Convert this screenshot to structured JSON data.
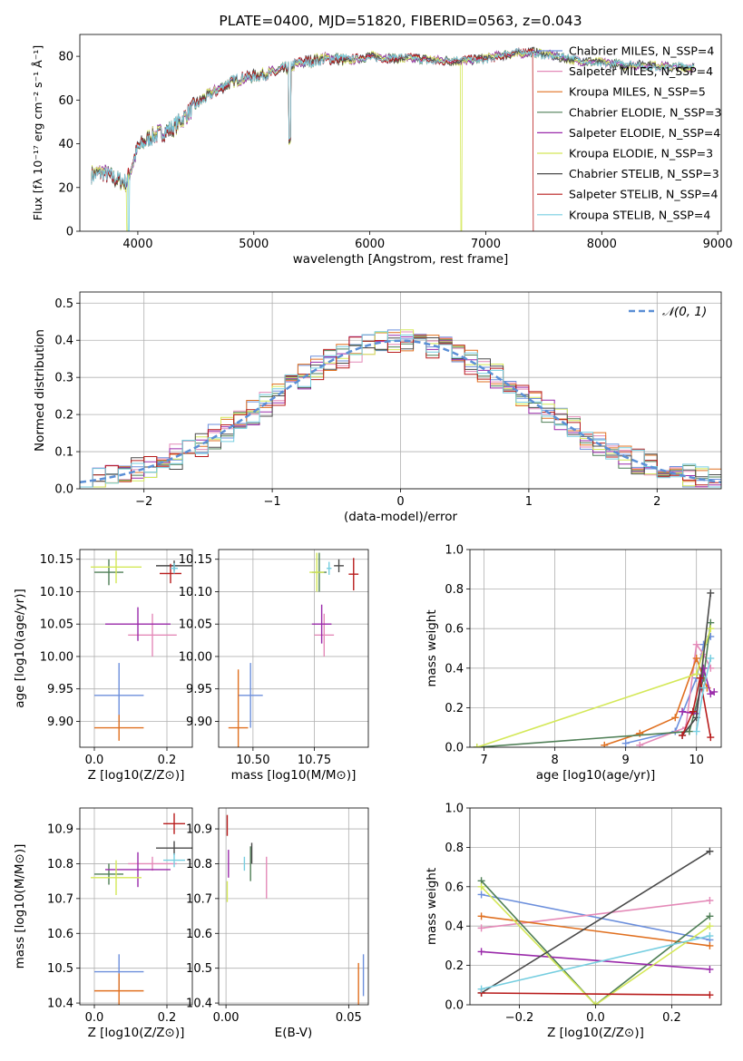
{
  "colors": {
    "Chabrier MILES": "#6c8fdc",
    "Salpeter MILES": "#e48ab8",
    "Kroupa MILES": "#e07020",
    "Chabrier ELODIE": "#4f7f56",
    "Salpeter ELODIE": "#9a2aaa",
    "Kroupa ELODIE": "#d4e858",
    "Chabrier STELIB": "#4a4a4a",
    "Salpeter STELIB": "#b81c1c",
    "Kroupa STELIB": "#76cee0"
  },
  "chart_data": [
    {
      "type": "line",
      "title": "PLATE=0400, MJD=51820, FIBERID=0563, z=0.043",
      "xlabel": "wavelength [Angstrom, rest frame]",
      "ylabel": "Flux [fλ 10⁻¹⁷ erg cm⁻² s⁻¹ Å⁻¹]",
      "xlim": [
        3500,
        9030
      ],
      "ylim": [
        0,
        90
      ],
      "xticks": [
        "4000",
        "5000",
        "6000",
        "7000",
        "8000",
        "9000"
      ],
      "yticks": [
        "0",
        "20",
        "40",
        "60",
        "80"
      ],
      "grid": false,
      "legend_position": "top-right",
      "legend": [
        {
          "model": "Chabrier MILES",
          "label": "Chabrier MILES, N_SSP=4"
        },
        {
          "model": "Salpeter MILES",
          "label": "Salpeter MILES, N_SSP=4"
        },
        {
          "model": "Kroupa MILES",
          "label": "Kroupa MILES, N_SSP=5"
        },
        {
          "model": "Chabrier ELODIE",
          "label": "Chabrier ELODIE, N_SSP=3"
        },
        {
          "model": "Salpeter ELODIE",
          "label": "Salpeter ELODIE, N_SSP=4"
        },
        {
          "model": "Kroupa ELODIE",
          "label": "Kroupa ELODIE, N_SSP=3"
        },
        {
          "model": "Chabrier STELIB",
          "label": "Chabrier STELIB, N_SSP=3"
        },
        {
          "model": "Salpeter STELIB",
          "label": "Salpeter STELIB, N_SSP=4"
        },
        {
          "model": "Kroupa STELIB",
          "label": "Kroupa STELIB, N_SSP=4"
        }
      ],
      "continuum": {
        "x": [
          3600,
          3700,
          3800,
          3900,
          4000,
          4100,
          4200,
          4300,
          4400,
          4500,
          4600,
          4700,
          4800,
          4900,
          5000,
          5100,
          5200,
          5300,
          5400,
          5500,
          5600,
          5700,
          5800,
          5900,
          6000,
          6200,
          6400,
          6600,
          6800,
          7000,
          7200,
          7400,
          7600,
          7800,
          8000,
          8200,
          8400,
          8600,
          8800
        ],
        "y": [
          26,
          27,
          24,
          22,
          38,
          43,
          45,
          47,
          52,
          58,
          62,
          65,
          68,
          70,
          71,
          72,
          73,
          75,
          77,
          78,
          79,
          79,
          78,
          79,
          80,
          79,
          79,
          78,
          78,
          79,
          81,
          82,
          80,
          78,
          77,
          76,
          76,
          75,
          75
        ]
      },
      "cutoffs": [
        {
          "model": "Kroupa ELODIE",
          "x": 6790
        },
        {
          "model": "Salpeter STELIB",
          "x": 7410
        },
        {
          "model": "Kroupa STELIB",
          "x": 3920
        },
        {
          "model": "Kroupa ELODIE",
          "x": 3910
        }
      ]
    },
    {
      "type": "step",
      "title": "",
      "xlabel": "(data-model)/error",
      "ylabel": "Normed distribution",
      "xlim": [
        -2.5,
        2.5
      ],
      "ylim": [
        0,
        0.53
      ],
      "xticks": [
        "−2",
        "−1",
        "0",
        "1",
        "2"
      ],
      "yticks": [
        "0.0",
        "0.1",
        "0.2",
        "0.3",
        "0.4",
        "0.5"
      ],
      "grid": true,
      "legend_position": "top-right",
      "legend_label": "𝒩(0, 1)",
      "reference_curve": "normal distribution, mean 0, sigma 1",
      "histogram_range": [
        -2.5,
        2.5
      ],
      "n_bins": 50
    },
    {
      "type": "scatter",
      "title": "",
      "xlabel": "Z [log10(Z/Z⊙)]",
      "ylabel": "age  [log10(age/yr)]",
      "xlim": [
        -0.04,
        0.27
      ],
      "ylim": [
        9.86,
        10.165
      ],
      "xticks": [
        "0.0",
        "0.2"
      ],
      "yticks": [
        "9.90",
        "9.95",
        "10.00",
        "10.05",
        "10.10",
        "10.15"
      ],
      "grid": true,
      "points": [
        {
          "model": "Chabrier MILES",
          "x": 0.068,
          "y": 9.94,
          "xerr": 0.068,
          "yerr": 0.05
        },
        {
          "model": "Salpeter MILES",
          "x": 0.16,
          "y": 10.033,
          "xerr": 0.067,
          "yerr": 0.033
        },
        {
          "model": "Kroupa MILES",
          "x": 0.068,
          "y": 9.89,
          "xerr": 0.068,
          "yerr": 0.02
        },
        {
          "model": "Chabrier ELODIE",
          "x": 0.04,
          "y": 10.13,
          "xerr": 0.04,
          "yerr": 0.02
        },
        {
          "model": "Salpeter ELODIE",
          "x": 0.12,
          "y": 10.05,
          "xerr": 0.09,
          "yerr": 0.026
        },
        {
          "model": "Kroupa ELODIE",
          "x": 0.06,
          "y": 10.138,
          "xerr": 0.07,
          "yerr": 0.025
        },
        {
          "model": "Chabrier STELIB",
          "x": 0.22,
          "y": 10.14,
          "xerr": 0.05,
          "yerr": 0.008
        },
        {
          "model": "Salpeter STELIB",
          "x": 0.21,
          "y": 10.128,
          "xerr": 0.03,
          "yerr": 0.015
        },
        {
          "model": "Kroupa STELIB",
          "x": 0.22,
          "y": 10.136,
          "xerr": 0.01,
          "yerr": 0.008
        }
      ]
    },
    {
      "type": "scatter",
      "title": "",
      "xlabel": "mass [log10(M/M⊙)]",
      "ylabel": "",
      "xlim": [
        10.36,
        10.97
      ],
      "ylim": [
        9.86,
        10.165
      ],
      "xticks": [
        "10.50",
        "10.75"
      ],
      "yticks": [
        "9.90",
        "9.95",
        "10.00",
        "10.05",
        "10.10",
        "10.15"
      ],
      "grid": true,
      "points": [
        {
          "model": "Chabrier MILES",
          "x": 10.49,
          "y": 9.94,
          "xerr": 0.05,
          "yerr": 0.05
        },
        {
          "model": "Salpeter MILES",
          "x": 10.79,
          "y": 10.033,
          "xerr": 0.04,
          "yerr": 0.033
        },
        {
          "model": "Kroupa MILES",
          "x": 10.44,
          "y": 9.89,
          "xerr": 0.04,
          "yerr": 0.09
        },
        {
          "model": "Chabrier ELODIE",
          "x": 10.77,
          "y": 10.13,
          "xerr": 0.03,
          "yerr": 0.03
        },
        {
          "model": "Salpeter ELODIE",
          "x": 10.78,
          "y": 10.05,
          "xerr": 0.04,
          "yerr": 0.03
        },
        {
          "model": "Kroupa ELODIE",
          "x": 10.76,
          "y": 10.13,
          "xerr": 0.03,
          "yerr": 0.03
        },
        {
          "model": "Chabrier STELIB",
          "x": 10.85,
          "y": 10.14,
          "xerr": 0.02,
          "yerr": 0.01
        },
        {
          "model": "Salpeter STELIB",
          "x": 10.91,
          "y": 10.127,
          "xerr": 0.02,
          "yerr": 0.025
        },
        {
          "model": "Kroupa STELIB",
          "x": 10.81,
          "y": 10.136,
          "xerr": 0.01,
          "yerr": 0.01
        }
      ]
    },
    {
      "type": "line",
      "title": "",
      "xlabel": "age  [log10(age/yr)]",
      "ylabel": "mass weight",
      "xlim": [
        6.8,
        10.35
      ],
      "ylim": [
        0,
        1.0
      ],
      "xticks": [
        "7",
        "8",
        "9",
        "10"
      ],
      "yticks": [
        "0.0",
        "0.2",
        "0.4",
        "0.6",
        "0.8",
        "1.0"
      ],
      "grid": true,
      "series": [
        {
          "model": "Chabrier MILES",
          "x": [
            9.0,
            9.7,
            10.0,
            10.1,
            10.2
          ],
          "y": [
            0.02,
            0.08,
            0.35,
            0.52,
            0.56
          ]
        },
        {
          "model": "Salpeter MILES",
          "x": [
            9.2,
            9.85,
            10.0,
            10.1,
            10.2
          ],
          "y": [
            0.01,
            0.1,
            0.52,
            0.47,
            0.4
          ]
        },
        {
          "model": "Kroupa MILES",
          "x": [
            8.7,
            9.2,
            9.7,
            10.0,
            10.15
          ],
          "y": [
            0.01,
            0.07,
            0.15,
            0.45,
            0.3
          ]
        },
        {
          "model": "Chabrier ELODIE",
          "x": [
            6.9,
            9.9,
            10.1,
            10.2
          ],
          "y": [
            0.0,
            0.08,
            0.35,
            0.63
          ]
        },
        {
          "model": "Salpeter ELODIE",
          "x": [
            9.8,
            10.0,
            10.1,
            10.2,
            10.25
          ],
          "y": [
            0.18,
            0.17,
            0.4,
            0.27,
            0.28
          ]
        },
        {
          "model": "Kroupa ELODIE",
          "x": [
            6.9,
            10.0,
            10.2
          ],
          "y": [
            0.0,
            0.37,
            0.6
          ]
        },
        {
          "model": "Chabrier STELIB",
          "x": [
            9.8,
            10.0,
            10.2
          ],
          "y": [
            0.06,
            0.15,
            0.78
          ]
        },
        {
          "model": "Salpeter STELIB",
          "x": [
            9.8,
            9.95,
            10.05,
            10.2
          ],
          "y": [
            0.06,
            0.18,
            0.35,
            0.05
          ]
        },
        {
          "model": "Kroupa STELIB",
          "x": [
            10.0,
            10.1,
            10.2
          ],
          "y": [
            0.08,
            0.3,
            0.45
          ]
        }
      ]
    },
    {
      "type": "scatter",
      "title": "",
      "xlabel": "Z [log10(Z/Z⊙)]",
      "ylabel": "mass [log10(M/M⊙)]",
      "xlim": [
        -0.04,
        0.27
      ],
      "ylim": [
        10.395,
        10.96
      ],
      "xticks": [
        "0.0",
        "0.2"
      ],
      "yticks": [
        "10.4",
        "10.5",
        "10.6",
        "10.7",
        "10.8",
        "10.9"
      ],
      "grid": true,
      "points": [
        {
          "model": "Chabrier MILES",
          "x": 0.068,
          "y": 10.49,
          "xerr": 0.068,
          "yerr": 0.05
        },
        {
          "model": "Salpeter MILES",
          "x": 0.16,
          "y": 10.8,
          "xerr": 0.067,
          "yerr": 0.02
        },
        {
          "model": "Kroupa MILES",
          "x": 0.068,
          "y": 10.435,
          "xerr": 0.068,
          "yerr": 0.05
        },
        {
          "model": "Chabrier ELODIE",
          "x": 0.04,
          "y": 10.77,
          "xerr": 0.04,
          "yerr": 0.03
        },
        {
          "model": "Salpeter ELODIE",
          "x": 0.12,
          "y": 10.783,
          "xerr": 0.09,
          "yerr": 0.05
        },
        {
          "model": "Kroupa ELODIE",
          "x": 0.06,
          "y": 10.76,
          "xerr": 0.07,
          "yerr": 0.05
        },
        {
          "model": "Chabrier STELIB",
          "x": 0.22,
          "y": 10.845,
          "xerr": 0.05,
          "yerr": 0.02
        },
        {
          "model": "Salpeter STELIB",
          "x": 0.22,
          "y": 10.915,
          "xerr": 0.03,
          "yerr": 0.03
        },
        {
          "model": "Kroupa STELIB",
          "x": 0.22,
          "y": 10.81,
          "xerr": 0.03,
          "yerr": 0.02
        }
      ]
    },
    {
      "type": "scatter",
      "title": "",
      "xlabel": "E(B-V)",
      "ylabel": "",
      "xlim": [
        -0.003,
        0.058
      ],
      "ylim": [
        10.395,
        10.96
      ],
      "xticks": [
        "0.00",
        "0.05"
      ],
      "yticks": [
        "10.4",
        "10.5",
        "10.6",
        "10.7",
        "10.8",
        "10.9"
      ],
      "grid": true,
      "points": [
        {
          "model": "Chabrier MILES",
          "x": 0.056,
          "y": 10.48,
          "xerr": 0.0,
          "yerr": 0.06
        },
        {
          "model": "Salpeter MILES",
          "x": 0.0165,
          "y": 10.76,
          "xerr": 0.0,
          "yerr": 0.06
        },
        {
          "model": "Kroupa MILES",
          "x": 0.054,
          "y": 10.455,
          "xerr": 0.0,
          "yerr": 0.06
        },
        {
          "model": "Chabrier ELODIE",
          "x": 0.01,
          "y": 10.8,
          "xerr": 0.0,
          "yerr": 0.05
        },
        {
          "model": "Salpeter ELODIE",
          "x": 0.001,
          "y": 10.8,
          "xerr": 0.0,
          "yerr": 0.04
        },
        {
          "model": "Kroupa ELODIE",
          "x": 0.0005,
          "y": 10.72,
          "xerr": 0.0,
          "yerr": 0.03
        },
        {
          "model": "Chabrier STELIB",
          "x": 0.0105,
          "y": 10.83,
          "xerr": 0.0,
          "yerr": 0.03
        },
        {
          "model": "Salpeter STELIB",
          "x": 0.0005,
          "y": 10.91,
          "xerr": 0.0,
          "yerr": 0.03
        },
        {
          "model": "Kroupa STELIB",
          "x": 0.0075,
          "y": 10.8,
          "xerr": 0.0,
          "yerr": 0.02
        }
      ]
    },
    {
      "type": "line",
      "title": "",
      "xlabel": "Z [log10(Z/Z⊙)]",
      "ylabel": "mass weight",
      "xlim": [
        -0.33,
        0.33
      ],
      "ylim": [
        0,
        1.0
      ],
      "xticks": [
        "−0.2",
        "0.0",
        "0.2"
      ],
      "yticks": [
        "0.0",
        "0.2",
        "0.4",
        "0.6",
        "0.8",
        "1.0"
      ],
      "grid": true,
      "series": [
        {
          "model": "Chabrier MILES",
          "x": [
            -0.3,
            0.3
          ],
          "y": [
            0.56,
            0.33
          ]
        },
        {
          "model": "Salpeter MILES",
          "x": [
            -0.3,
            0.3
          ],
          "y": [
            0.39,
            0.53
          ]
        },
        {
          "model": "Kroupa MILES",
          "x": [
            -0.3,
            0.3
          ],
          "y": [
            0.45,
            0.3
          ]
        },
        {
          "model": "Chabrier ELODIE",
          "x": [
            -0.3,
            0.0,
            0.3
          ],
          "y": [
            0.63,
            0.0,
            0.45
          ]
        },
        {
          "model": "Salpeter ELODIE",
          "x": [
            -0.3,
            0.3
          ],
          "y": [
            0.27,
            0.18
          ]
        },
        {
          "model": "Kroupa ELODIE",
          "x": [
            -0.3,
            0.0,
            0.3
          ],
          "y": [
            0.6,
            0.0,
            0.4
          ]
        },
        {
          "model": "Chabrier STELIB",
          "x": [
            -0.3,
            0.3
          ],
          "y": [
            0.06,
            0.78
          ]
        },
        {
          "model": "Salpeter STELIB",
          "x": [
            -0.3,
            0.3
          ],
          "y": [
            0.06,
            0.05
          ]
        },
        {
          "model": "Kroupa STELIB",
          "x": [
            -0.3,
            0.3
          ],
          "y": [
            0.08,
            0.35
          ]
        }
      ]
    }
  ]
}
